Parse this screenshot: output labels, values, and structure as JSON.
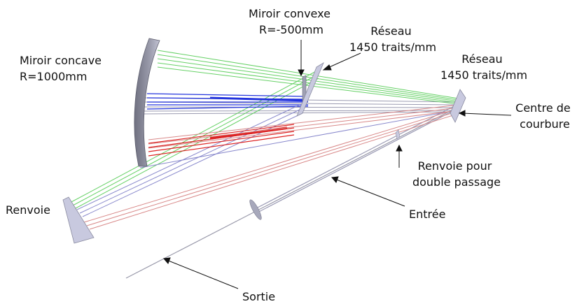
{
  "labels": {
    "concave_mirror": [
      "Miroir concave",
      "R=1000mm"
    ],
    "convex_mirror": [
      "Miroir convexe",
      "R=-500mm"
    ],
    "grating_1": [
      "Réseau",
      "1450 traits/mm"
    ],
    "grating_2": [
      "Réseau",
      "1450 traits/mm"
    ],
    "center_of_curvature": [
      "Centre de",
      "courbure"
    ],
    "fold_double_pass": [
      "Renvoie pour",
      "double passage"
    ],
    "fold_mirror": "Renvoie",
    "input": "Entrée",
    "output": "Sortie"
  },
  "colors": {
    "green_beam": "#55cc55",
    "blue_beam": "#2233dd",
    "red_beam": "#dd2222",
    "pink_beam": "#d88888",
    "lavender_beam": "#8888cc",
    "grey_beam": "#9999aa",
    "optic_face": "#c8c9df",
    "optic_edge": "#8a8ba0",
    "mirror_dark": "#7c7c8a",
    "arrow": "#111111"
  }
}
